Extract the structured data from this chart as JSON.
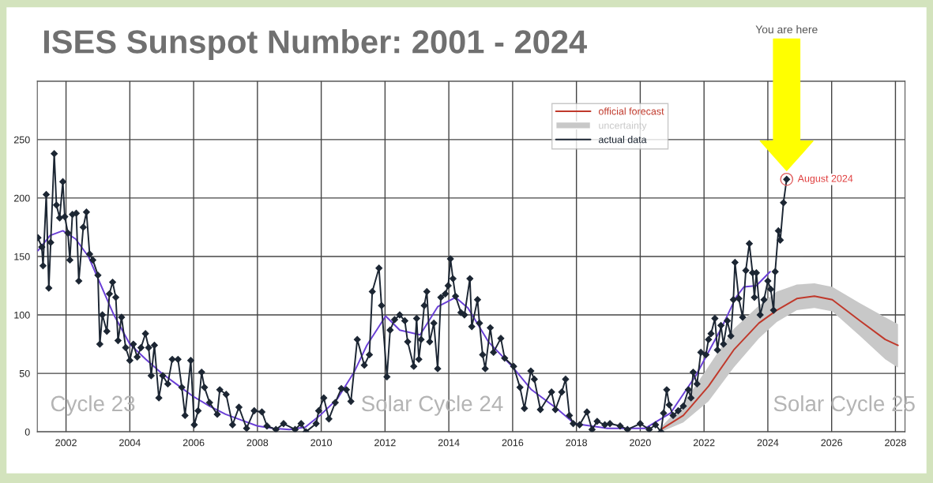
{
  "chart_data": {
    "type": "line",
    "title": "ISES Sunspot Number: 2001 - 2024",
    "xlim": [
      2001.1,
      2028.3
    ],
    "xticks": [
      2002,
      2004,
      2006,
      2008,
      2010,
      2012,
      2014,
      2016,
      2018,
      2020,
      2022,
      2024,
      2026,
      2028
    ],
    "ylim": [
      0,
      300
    ],
    "yticks": [
      0,
      50,
      100,
      150,
      200,
      250,
      {
        "value": 300,
        "label": null
      }
    ],
    "grid": true,
    "legend": "top",
    "series": [
      {
        "name": "official forecast",
        "color": "#c0392b",
        "marker": "none",
        "x": [
          2020.65,
          2021.35,
          2022.14,
          2022.93,
          2023.72,
          2024.28,
          2024.91,
          2025.46,
          2026.02,
          2026.89,
          2027.68,
          2028.08
        ],
        "values": [
          2,
          14,
          39,
          70,
          93,
          104,
          114,
          116,
          113,
          95,
          79,
          74
        ]
      },
      {
        "name": "uncertainty",
        "type": "area",
        "color": "#c8c8c8",
        "x": [
          2020.65,
          2021.35,
          2022.14,
          2022.93,
          2023.72,
          2024.28,
          2024.91,
          2025.46,
          2026.02,
          2026.89,
          2027.68,
          2028.08
        ],
        "values": [
          null,
          null,
          null,
          null,
          null,
          null,
          null,
          null,
          null,
          null,
          null,
          null
        ],
        "lower": [
          0,
          8,
          26,
          55,
          80,
          94,
          104,
          106,
          103,
          82,
          62,
          55
        ],
        "upper": [
          4,
          24,
          56,
          88,
          108,
          120,
          126,
          127,
          124,
          110,
          98,
          92
        ]
      },
      {
        "name": "actual data",
        "color": "#1c2633",
        "marker": "diamond",
        "x": [
          2001.12,
          2001.24,
          2001.28,
          2001.38,
          2001.46,
          2001.52,
          2001.63,
          2001.7,
          2001.8,
          2001.9,
          2001.96,
          2002.06,
          2002.12,
          2002.2,
          2002.32,
          2002.4,
          2002.54,
          2002.64,
          2002.74,
          2002.84,
          2003.0,
          2003.06,
          2003.14,
          2003.28,
          2003.36,
          2003.46,
          2003.56,
          2003.63,
          2003.74,
          2003.87,
          2004.0,
          2004.11,
          2004.23,
          2004.35,
          2004.49,
          2004.59,
          2004.67,
          2004.77,
          2004.91,
          2005.03,
          2005.19,
          2005.33,
          2005.51,
          2005.63,
          2005.73,
          2005.91,
          2006.02,
          2006.14,
          2006.25,
          2006.34,
          2006.5,
          2006.74,
          2006.82,
          2007.02,
          2007.22,
          2007.42,
          2007.66,
          2007.9,
          2008.14,
          2008.3,
          2008.58,
          2008.82,
          2009.18,
          2009.37,
          2009.52,
          2009.84,
          2009.92,
          2010.08,
          2010.24,
          2010.44,
          2010.63,
          2010.79,
          2010.93,
          2011.13,
          2011.35,
          2011.51,
          2011.6,
          2011.81,
          2011.89,
          2012.06,
          2012.16,
          2012.3,
          2012.46,
          2012.62,
          2012.71,
          2012.9,
          2012.99,
          2013.06,
          2013.13,
          2013.23,
          2013.31,
          2013.4,
          2013.53,
          2013.65,
          2013.75,
          2013.89,
          2013.98,
          2014.05,
          2014.13,
          2014.21,
          2014.38,
          2014.49,
          2014.66,
          2014.72,
          2014.9,
          2014.96,
          2015.06,
          2015.14,
          2015.3,
          2015.4,
          2015.63,
          2015.75,
          2016.03,
          2016.23,
          2016.37,
          2016.57,
          2016.68,
          2016.87,
          2017.22,
          2017.34,
          2017.54,
          2017.66,
          2017.78,
          2017.9,
          2018.1,
          2018.33,
          2018.49,
          2018.65,
          2018.89,
          2019.05,
          2019.37,
          2019.6,
          2020.0,
          2020.28,
          2020.48,
          2020.65,
          2020.73,
          2020.83,
          2020.91,
          2021.03,
          2021.19,
          2021.35,
          2021.51,
          2021.59,
          2021.66,
          2021.78,
          2021.9,
          2022.06,
          2022.14,
          2022.22,
          2022.34,
          2022.42,
          2022.53,
          2022.61,
          2022.73,
          2022.84,
          2022.92,
          2022.97,
          2023.09,
          2023.21,
          2023.31,
          2023.42,
          2023.52,
          2023.58,
          2023.64,
          2023.76,
          2023.88,
          2024.0,
          2024.09,
          2024.18,
          2024.23,
          2024.33,
          2024.39,
          2024.49,
          2024.59
        ],
        "values": [
          166,
          158,
          142,
          203,
          123,
          162,
          238,
          194,
          183,
          214,
          184,
          170,
          147,
          186,
          187,
          129,
          175,
          188,
          152,
          147,
          134,
          75,
          100,
          86,
          118,
          128,
          115,
          78,
          98,
          72,
          61,
          75,
          64,
          72,
          84,
          72,
          48,
          74,
          29,
          48,
          41,
          62,
          62,
          38,
          14,
          61,
          6,
          18,
          51,
          38,
          25,
          15,
          36,
          32,
          6,
          21,
          3,
          18,
          17,
          5,
          2,
          7,
          2,
          7,
          0,
          7,
          18,
          29,
          11,
          25,
          37,
          36,
          26,
          79,
          57,
          66,
          120,
          140,
          108,
          47,
          87,
          96,
          100,
          95,
          77,
          56,
          97,
          62,
          79,
          108,
          120,
          77,
          93,
          54,
          115,
          118,
          125,
          148,
          131,
          116,
          102,
          100,
          131,
          90,
          113,
          93,
          66,
          54,
          89,
          68,
          80,
          63,
          56,
          38,
          20,
          52,
          45,
          19,
          34,
          19,
          34,
          45,
          14,
          7,
          6,
          17,
          2,
          9,
          6,
          7,
          5,
          2,
          7,
          2,
          6,
          0,
          16,
          36,
          23,
          14,
          18,
          22,
          36,
          29,
          51,
          41,
          68,
          66,
          79,
          84,
          97,
          70,
          91,
          75,
          95,
          82,
          113,
          145,
          114,
          98,
          138,
          161,
          136,
          115,
          136,
          100,
          113,
          129,
          122,
          104,
          137,
          172,
          164,
          196,
          216
        ]
      },
      {
        "color": "#6a3fd6",
        "marker": "none",
        "x": [
          2001.12,
          2001.5,
          2001.9,
          2002.3,
          2002.7,
          2003.1,
          2003.5,
          2004.0,
          2004.5,
          2005.0,
          2005.5,
          2006.0,
          2006.5,
          2007.0,
          2007.5,
          2008.0,
          2008.5,
          2009.0,
          2009.5,
          2010.0,
          2010.5,
          2011.03,
          2011.43,
          2012.02,
          2012.46,
          2013.1,
          2013.65,
          2014.21,
          2014.6,
          2015.24,
          2015.95,
          2016.59,
          2017.38,
          2017.94,
          2018.97,
          2020.16,
          2020.95,
          2021.74,
          2022.53,
          2023.0,
          2023.25,
          2023.64,
          2024.07
        ],
        "values": [
          155,
          168,
          172,
          165,
          150,
          125,
          100,
          75,
          62,
          50,
          40,
          30,
          22,
          15,
          10,
          5,
          3,
          2,
          4,
          15,
          28,
          51,
          74,
          99,
          87,
          83,
          107,
          115,
          106,
          77,
          57,
          36,
          20,
          7,
          3,
          3,
          16,
          48,
          88,
          115,
          124,
          125,
          137
        ]
      }
    ],
    "annotations": [
      "You are here",
      {
        "text": "August 2024",
        "x": 2024.59,
        "y": 216
      },
      "Cycle 23",
      "Solar Cycle 24",
      "Solar Cycle 25"
    ]
  }
}
